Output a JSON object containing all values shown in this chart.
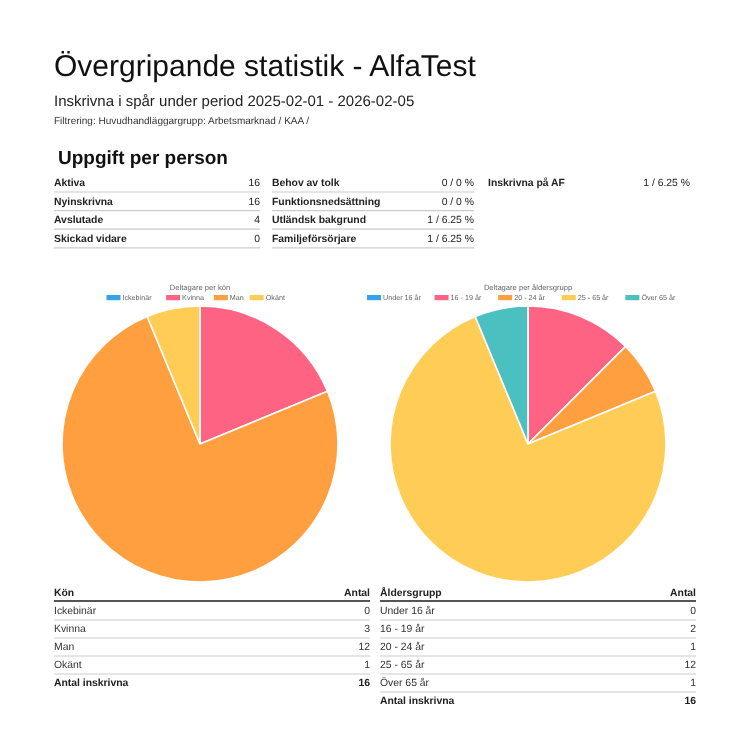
{
  "chart_data": [
    {
      "type": "other",
      "title": "Övergripande statistik - AlfaTest",
      "subtitle": "Inskrivna i spår under period 2025-02-01 - 2026-02-05",
      "annotations": [
        "Filtrering: Huvudhandläggargrupp: Arbetsmarknad / KAA /",
        "Uppgift per person"
      ],
      "categories": [
        "Aktiva",
        "Nyinskrivna",
        "Avslutade",
        "Skickad vidare",
        "Behov av tolk",
        "Funktionsnedsättning",
        "Utländsk bakgrund",
        "Familjeförsörjare",
        "Inskrivna på AF"
      ],
      "value_labels": [
        "16",
        "16",
        "4",
        "0",
        "0 / 0 %",
        "0 / 0 %",
        "1 / 6.25 %",
        "1 / 6.25 %",
        "1 / 6.25 %"
      ]
    },
    {
      "type": "pie",
      "title": "Deltagare per kön",
      "legend": "top",
      "categories": [
        "Ickebinär",
        "Kvinna",
        "Man",
        "Okänt"
      ],
      "values": [
        0,
        18.75,
        75,
        6.25
      ],
      "colors": [
        "#36a2eb",
        "#ff6384",
        "#ff9f40",
        "#ffcd56"
      ]
    },
    {
      "type": "pie",
      "title": "Deltagare per åldersgrupp",
      "legend": "top",
      "categories": [
        "Under 16 år",
        "16 - 19 år",
        "20 - 24 år",
        "25 - 65 år",
        "Över 65 år"
      ],
      "values": [
        0,
        12.5,
        6.25,
        75,
        6.25
      ],
      "colors": [
        "#36a2eb",
        "#ff6384",
        "#ff9f40",
        "#ffcd56",
        "#4bc0c0"
      ]
    },
    {
      "type": "other",
      "categories": [
        "Ickebinär",
        "Kvinna",
        "Man",
        "Okänt"
      ],
      "value_labels": [
        "0",
        "3",
        "12",
        "1"
      ],
      "annotations": [
        "Kön",
        "Antal",
        "Antal inskrivna",
        "16"
      ]
    },
    {
      "type": "other",
      "categories": [
        "Under 16 år",
        "16 - 19 år",
        "20 - 24 år",
        "25 - 65 år",
        "Över 65 år"
      ],
      "value_labels": [
        "0",
        "2",
        "1",
        "12",
        "1"
      ],
      "annotations": [
        "Åldersgrupp",
        "Antal",
        "Antal inskrivna",
        "16"
      ]
    }
  ]
}
